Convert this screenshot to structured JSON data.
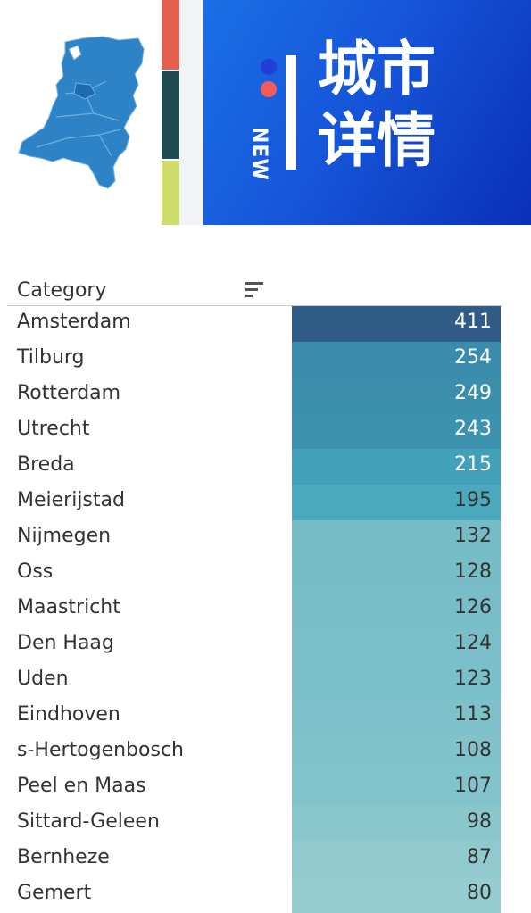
{
  "banner": {
    "badge_text": "NEW",
    "title_line1": "城市",
    "title_line2": "详情",
    "colors": {
      "map_fill": "#2d83c6",
      "stripe_red": "#e2604e",
      "stripe_teal": "#1e4a50",
      "stripe_lime": "#cddc6a",
      "panel_blue": "#1656d9"
    }
  },
  "chart_data": {
    "type": "table",
    "column_header": "Category",
    "header_icon": "sort-icon",
    "rows": [
      {
        "category": "Amsterdam",
        "value": 411,
        "color": "#2f5b87",
        "text_color": "#ffffff"
      },
      {
        "category": "Tilburg",
        "value": 254,
        "color": "#3a8cac",
        "text_color": "#ffffff"
      },
      {
        "category": "Rotterdam",
        "value": 249,
        "color": "#3b8fad",
        "text_color": "#ffffff"
      },
      {
        "category": "Utrecht",
        "value": 243,
        "color": "#3c92ae",
        "text_color": "#ffffff"
      },
      {
        "category": "Breda",
        "value": 215,
        "color": "#43a0b9",
        "text_color": "#ffffff"
      },
      {
        "category": "Meierijstad",
        "value": 195,
        "color": "#4aa9bf",
        "text_color": "#333333"
      },
      {
        "category": "Nijmegen",
        "value": 132,
        "color": "#76bcc7",
        "text_color": "#333333"
      },
      {
        "category": "Oss",
        "value": 128,
        "color": "#77bdc8",
        "text_color": "#333333"
      },
      {
        "category": "Maastricht",
        "value": 126,
        "color": "#78bdc8",
        "text_color": "#333333"
      },
      {
        "category": "Den Haag",
        "value": 124,
        "color": "#79bec9",
        "text_color": "#333333"
      },
      {
        "category": "Uden",
        "value": 123,
        "color": "#7abfc9",
        "text_color": "#333333"
      },
      {
        "category": "Eindhoven",
        "value": 113,
        "color": "#7fc1ca",
        "text_color": "#333333"
      },
      {
        "category": "s-Hertogenbosch",
        "value": 108,
        "color": "#82c3cb",
        "text_color": "#333333"
      },
      {
        "category": "Peel en Maas",
        "value": 107,
        "color": "#83c3cb",
        "text_color": "#333333"
      },
      {
        "category": "Sittard-Geleen",
        "value": 98,
        "color": "#89c7cd",
        "text_color": "#333333"
      },
      {
        "category": "Bernheze",
        "value": 87,
        "color": "#90cace",
        "text_color": "#333333"
      },
      {
        "category": "Gemert",
        "value": 80,
        "color": "#95ccd0",
        "text_color": "#333333"
      }
    ]
  }
}
